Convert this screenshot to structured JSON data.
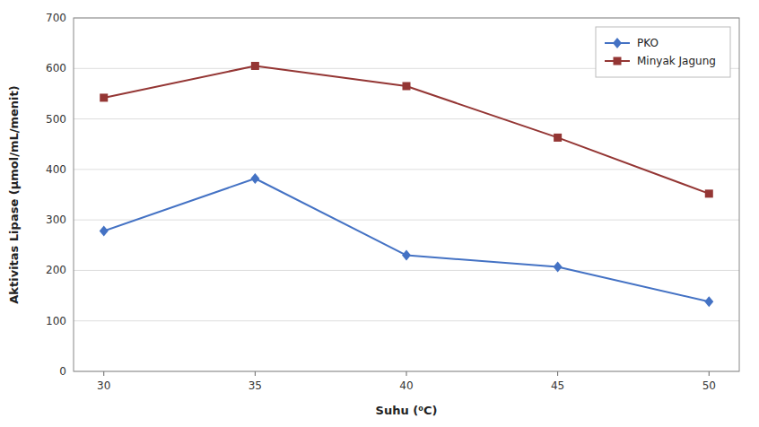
{
  "chart_data": {
    "type": "line",
    "x": [
      30,
      35,
      40,
      45,
      50
    ],
    "series": [
      {
        "name": "PKO",
        "color": "#4472C4",
        "marker": "diamond",
        "values": [
          278,
          382,
          230,
          207,
          138
        ]
      },
      {
        "name": "Minyak Jagung",
        "color": "#943634",
        "marker": "square",
        "values": [
          542,
          605,
          565,
          463,
          352
        ]
      }
    ],
    "x_label": "Suhu (⁰C)",
    "y_label": "Aktivitas Lipase (µmol/mL/menit)",
    "xlim": [
      29,
      51
    ],
    "xticks": [
      30,
      35,
      40,
      45,
      50
    ],
    "ylim": [
      0,
      700
    ],
    "yticks": [
      0,
      100,
      200,
      300,
      400,
      500,
      600,
      700
    ],
    "grid": true,
    "legend": "upper right"
  }
}
